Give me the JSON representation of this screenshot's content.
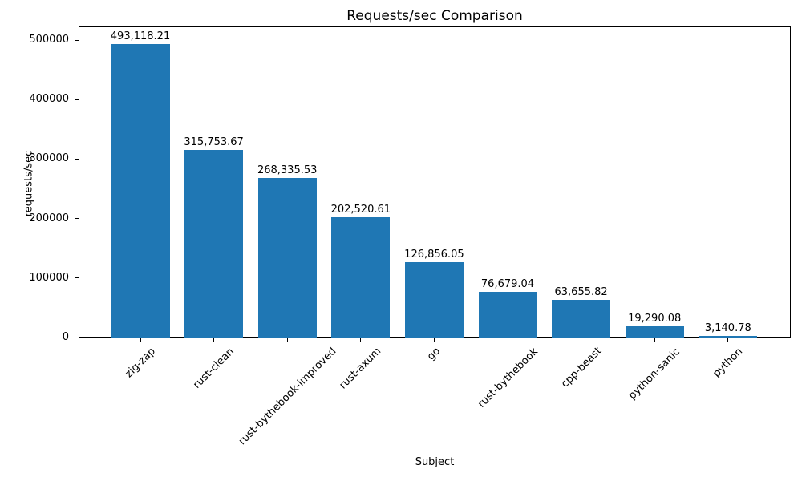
{
  "chart_data": {
    "type": "bar",
    "title": "Requests/sec Comparison",
    "xlabel": "Subject",
    "ylabel": "requests/sec",
    "categories": [
      "zig-zap",
      "rust-clean",
      "rust-bythebook-improved",
      "rust-axum",
      "go",
      "rust-bythebook",
      "cpp-beast",
      "python-sanic",
      "python"
    ],
    "values": [
      493118.21,
      315753.67,
      268335.53,
      202520.61,
      126856.05,
      76679.04,
      63655.82,
      19290.08,
      3140.78
    ],
    "bar_labels": [
      "493,118.21",
      "315,753.67",
      "268,335.53",
      "202,520.61",
      "126,856.05",
      "76,679.04",
      "63,655.82",
      "19,290.08",
      "3,140.78"
    ],
    "bar_color": "#1f77b4",
    "text_color": "#000000",
    "ylim": [
      0,
      523000
    ],
    "yticks": [
      0,
      100000,
      200000,
      300000,
      400000,
      500000
    ],
    "ytick_labels": [
      "0",
      "100000",
      "200000",
      "300000",
      "400000",
      "500000"
    ],
    "xtick_rotation_deg": 45,
    "grid": false,
    "legend_position": "none"
  }
}
